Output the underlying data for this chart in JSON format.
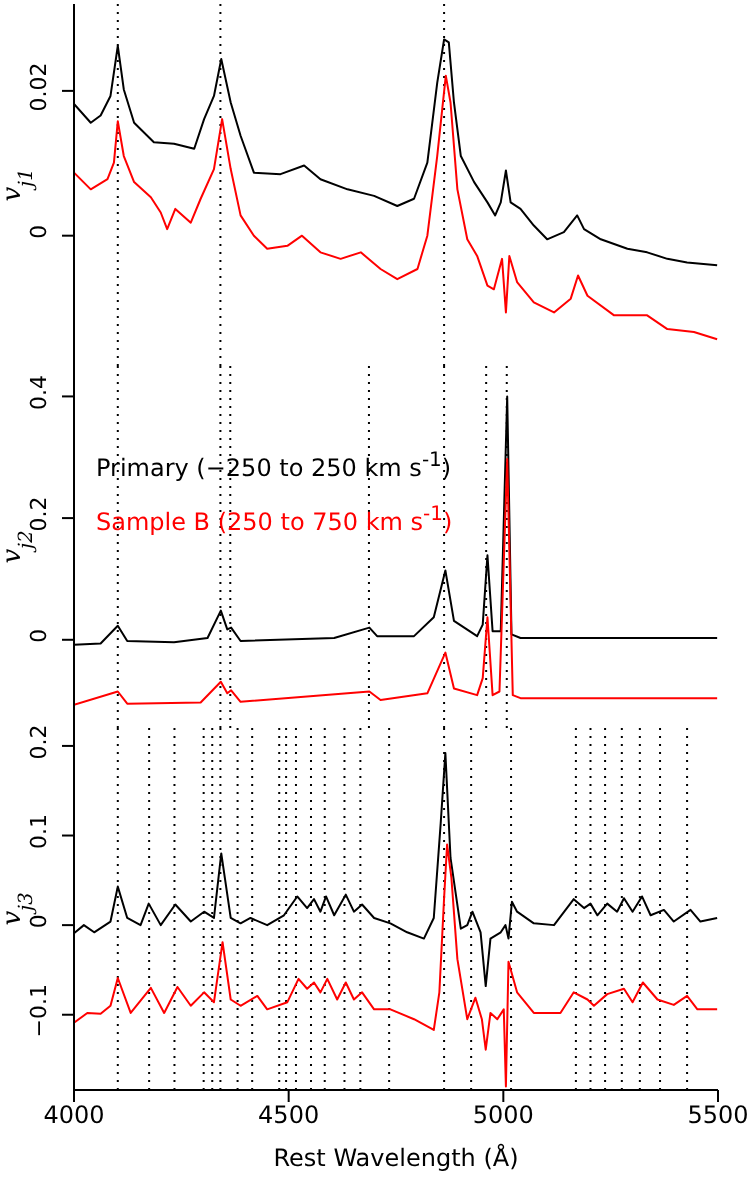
{
  "chart_data": [
    {
      "type": "line",
      "ylabel": "v$_{j1}$",
      "xlim": [
        4000,
        5500
      ],
      "xticks": [
        4000,
        4500,
        5000,
        5500
      ],
      "ylim": [
        -0.018,
        0.032
      ],
      "yticks": [
        0,
        0.02
      ],
      "tick_labels": "y",
      "ref_lines": [
        {
          "axis": "x",
          "value": 4102,
          "line_style": "dotted"
        },
        {
          "axis": "x",
          "value": 4341,
          "line_style": "dotted"
        },
        {
          "axis": "x",
          "value": 4862,
          "line_style": "dotted"
        }
      ],
      "series": [
        {
          "color": "#000000",
          "x": [
            4000,
            4039,
            4062,
            4085,
            4102,
            4116,
            4140,
            4186,
            4233,
            4280,
            4303,
            4326,
            4343,
            4365,
            4388,
            4419,
            4481,
            4536,
            4574,
            4637,
            4699,
            4753,
            4792,
            4823,
            4846,
            4862,
            4873,
            4885,
            4901,
            4932,
            4963,
            4981,
            4994,
            5006,
            5017,
            5040,
            5071,
            5102,
            5141,
            5172,
            5188,
            5227,
            5289,
            5335,
            5382,
            5428,
            5498
          ],
          "values": [
            0.0182,
            0.0156,
            0.0166,
            0.0193,
            0.0262,
            0.0202,
            0.0156,
            0.0129,
            0.0127,
            0.012,
            0.0161,
            0.0193,
            0.0244,
            0.0184,
            0.0138,
            0.0087,
            0.0085,
            0.0097,
            0.0078,
            0.0064,
            0.0055,
            0.0041,
            0.0051,
            0.0101,
            0.0211,
            0.0271,
            0.0267,
            0.0184,
            0.011,
            0.0074,
            0.0046,
            0.0028,
            0.0046,
            0.009,
            0.0046,
            0.0037,
            0.0014,
            -0.0005,
            0.0005,
            0.0028,
            0.0009,
            -0.0005,
            -0.0018,
            -0.0023,
            -0.0032,
            -0.0037,
            -0.0041
          ]
        },
        {
          "color": "#ff0000",
          "x": [
            4000,
            4039,
            4078,
            4093,
            4102,
            4116,
            4140,
            4179,
            4202,
            4217,
            4236,
            4272,
            4295,
            4326,
            4345,
            4365,
            4388,
            4419,
            4450,
            4497,
            4531,
            4574,
            4621,
            4668,
            4714,
            4753,
            4800,
            4823,
            4846,
            4866,
            4877,
            4893,
            4916,
            4939,
            4963,
            4978,
            4997,
            5006,
            5014,
            5032,
            5071,
            5118,
            5157,
            5174,
            5196,
            5258,
            5335,
            5382,
            5444,
            5498
          ],
          "values": [
            0.0087,
            0.0064,
            0.0078,
            0.0101,
            0.0158,
            0.011,
            0.0074,
            0.0053,
            0.0032,
            0.0009,
            0.0037,
            0.0018,
            0.0051,
            0.0092,
            0.0161,
            0.0092,
            0.0028,
            0,
            -0.0018,
            -0.0014,
            0,
            -0.0023,
            -0.0032,
            -0.0023,
            -0.0046,
            -0.006,
            -0.0046,
            0,
            0.011,
            0.0221,
            0.0184,
            0.0064,
            -0.0005,
            -0.0028,
            -0.0069,
            -0.0074,
            -0.0032,
            -0.0106,
            -0.0028,
            -0.0064,
            -0.0092,
            -0.0106,
            -0.0087,
            -0.0055,
            -0.0083,
            -0.011,
            -0.011,
            -0.0129,
            -0.0133,
            -0.0143
          ]
        }
      ]
    },
    {
      "type": "line",
      "ylabel": "v$_{j2}$",
      "xlim": [
        4000,
        5500
      ],
      "xticks": [
        4000,
        4500,
        5000,
        5500
      ],
      "ylim": [
        -0.145,
        0.45
      ],
      "yticks": [
        0,
        0.2,
        0.4
      ],
      "tick_labels": "y",
      "legend": "top left",
      "ref_lines": [
        {
          "axis": "x",
          "value": 4102,
          "line_style": "dotted"
        },
        {
          "axis": "x",
          "value": 4341,
          "line_style": "dotted"
        },
        {
          "axis": "x",
          "value": 4364,
          "line_style": "dotted"
        },
        {
          "axis": "x",
          "value": 4687,
          "line_style": "dotted"
        },
        {
          "axis": "x",
          "value": 4862,
          "line_style": "dotted"
        },
        {
          "axis": "x",
          "value": 4960,
          "line_style": "dotted"
        },
        {
          "axis": "x",
          "value": 5008,
          "line_style": "dotted"
        }
      ],
      "series": [
        {
          "name": "Primary (−250 to 250 km s$^{-1}$)",
          "color": "#000000",
          "x": [
            4000,
            4062,
            4102,
            4124,
            4233,
            4311,
            4342,
            4357,
            4366,
            4388,
            4606,
            4688,
            4706,
            4792,
            4838,
            4865,
            4885,
            4939,
            4952,
            4963,
            4975,
            4994,
            5009,
            5019,
            5040,
            5498
          ],
          "values": [
            -0.008,
            -0.006,
            0.023,
            -0.002,
            -0.004,
            0.003,
            0.048,
            0.017,
            0.02,
            -0.002,
            0.003,
            0.02,
            0.006,
            0.006,
            0.037,
            0.114,
            0.031,
            0.006,
            0.025,
            0.139,
            0.014,
            0.014,
            0.4,
            0.009,
            0.003,
            0.003
          ]
        },
        {
          "name": "Sample B (250 to 750 km s$^{-1}$)",
          "color": "#ff0000",
          "x": [
            4000,
            4102,
            4124,
            4295,
            4342,
            4357,
            4366,
            4388,
            4688,
            4714,
            4823,
            4865,
            4885,
            4939,
            4952,
            4963,
            4975,
            4991,
            5009,
            5022,
            5040,
            5498
          ],
          "values": [
            -0.107,
            -0.085,
            -0.105,
            -0.103,
            -0.069,
            -0.088,
            -0.083,
            -0.102,
            -0.085,
            -0.099,
            -0.088,
            -0.021,
            -0.08,
            -0.091,
            -0.063,
            0.037,
            -0.091,
            -0.085,
            0.297,
            -0.091,
            -0.096,
            -0.096
          ]
        }
      ]
    },
    {
      "type": "line",
      "ylabel": "v$_{j3}$",
      "xlabel": "Rest Wavelength (Å)",
      "xlim": [
        4000,
        5500
      ],
      "xticks": [
        4000,
        4500,
        5000,
        5500
      ],
      "ylim": [
        -0.184,
        0.22
      ],
      "yticks": [
        {
          "value": -0.1,
          "label": "−0.1"
        },
        0,
        0.1,
        0.2
      ],
      "ref_lines": [
        {
          "axis": "x",
          "value": 4102,
          "line_style": "dotted"
        },
        {
          "axis": "x",
          "value": 4175,
          "line_style": "dotted"
        },
        {
          "axis": "x",
          "value": 4234,
          "line_style": "dotted"
        },
        {
          "axis": "x",
          "value": 4302,
          "line_style": "dotted"
        },
        {
          "axis": "x",
          "value": 4322,
          "line_style": "dotted"
        },
        {
          "axis": "x",
          "value": 4341,
          "line_style": "dotted"
        },
        {
          "axis": "x",
          "value": 4381,
          "line_style": "dotted"
        },
        {
          "axis": "x",
          "value": 4415,
          "line_style": "dotted"
        },
        {
          "axis": "x",
          "value": 4478,
          "line_style": "dotted"
        },
        {
          "axis": "x",
          "value": 4494,
          "line_style": "dotted"
        },
        {
          "axis": "x",
          "value": 4517,
          "line_style": "dotted"
        },
        {
          "axis": "x",
          "value": 4552,
          "line_style": "dotted"
        },
        {
          "axis": "x",
          "value": 4584,
          "line_style": "dotted"
        },
        {
          "axis": "x",
          "value": 4630,
          "line_style": "dotted"
        },
        {
          "axis": "x",
          "value": 4667,
          "line_style": "dotted"
        },
        {
          "axis": "x",
          "value": 4734,
          "line_style": "dotted"
        },
        {
          "axis": "x",
          "value": 4862,
          "line_style": "dotted"
        },
        {
          "axis": "x",
          "value": 4925,
          "line_style": "dotted"
        },
        {
          "axis": "x",
          "value": 5018,
          "line_style": "dotted"
        },
        {
          "axis": "x",
          "value": 5169,
          "line_style": "dotted"
        },
        {
          "axis": "x",
          "value": 5203,
          "line_style": "dotted"
        },
        {
          "axis": "x",
          "value": 5237,
          "line_style": "dotted"
        },
        {
          "axis": "x",
          "value": 5276,
          "line_style": "dotted"
        },
        {
          "axis": "x",
          "value": 5318,
          "line_style": "dotted"
        },
        {
          "axis": "x",
          "value": 5365,
          "line_style": "dotted"
        },
        {
          "axis": "x",
          "value": 5428,
          "line_style": "dotted"
        }
      ],
      "series": [
        {
          "color": "#000000",
          "x": [
            4000,
            4023,
            4047,
            4085,
            4102,
            4124,
            4155,
            4174,
            4202,
            4236,
            4272,
            4303,
            4326,
            4343,
            4365,
            4388,
            4411,
            4450,
            4489,
            4520,
            4543,
            4559,
            4574,
            4587,
            4606,
            4633,
            4652,
            4671,
            4699,
            4737,
            4776,
            4815,
            4838,
            4854,
            4865,
            4877,
            4901,
            4916,
            4928,
            4947,
            4959,
            4970,
            4994,
            5005,
            5012,
            5020,
            5032,
            5071,
            5118,
            5164,
            5188,
            5203,
            5219,
            5242,
            5265,
            5281,
            5301,
            5323,
            5343,
            5374,
            5397,
            5436,
            5459,
            5498
          ],
          "values": [
            -0.009,
            0,
            -0.008,
            0.004,
            0.043,
            0.008,
            0,
            0.024,
            0,
            0.023,
            0.004,
            0.015,
            0.008,
            0.08,
            0.008,
            0.002,
            0.008,
            0,
            0.011,
            0.032,
            0.019,
            0.029,
            0.015,
            0.032,
            0.011,
            0.034,
            0.015,
            0.023,
            0.008,
            0.002,
            -0.008,
            -0.015,
            0.008,
            0.113,
            0.192,
            0.075,
            -0.004,
            0,
            0.015,
            -0.008,
            -0.068,
            -0.015,
            -0.008,
            0,
            -0.015,
            0.026,
            0.015,
            0.002,
            0,
            0.029,
            0.019,
            0.024,
            0.011,
            0.024,
            0.015,
            0.03,
            0.015,
            0.032,
            0.011,
            0.017,
            0.004,
            0.017,
            0.004,
            0.008
          ]
        },
        {
          "color": "#ff0000",
          "x": [
            4000,
            4031,
            4062,
            4085,
            4102,
            4132,
            4179,
            4210,
            4241,
            4272,
            4303,
            4326,
            4346,
            4365,
            4388,
            4427,
            4450,
            4497,
            4523,
            4543,
            4559,
            4574,
            4590,
            4613,
            4633,
            4652,
            4671,
            4699,
            4737,
            4792,
            4838,
            4851,
            4862,
            4869,
            4879,
            4893,
            4916,
            4935,
            4950,
            4959,
            4970,
            4986,
            5001,
            5006,
            5012,
            5032,
            5071,
            5133,
            5164,
            5196,
            5211,
            5242,
            5281,
            5301,
            5325,
            5359,
            5397,
            5428,
            5452,
            5498
          ],
          "values": [
            -0.109,
            -0.098,
            -0.099,
            -0.09,
            -0.059,
            -0.098,
            -0.07,
            -0.098,
            -0.069,
            -0.09,
            -0.075,
            -0.086,
            -0.019,
            -0.083,
            -0.09,
            -0.079,
            -0.094,
            -0.086,
            -0.06,
            -0.071,
            -0.064,
            -0.075,
            -0.06,
            -0.083,
            -0.064,
            -0.083,
            -0.075,
            -0.094,
            -0.094,
            -0.105,
            -0.117,
            -0.075,
            0.03,
            0.09,
            0.053,
            -0.038,
            -0.105,
            -0.081,
            -0.105,
            -0.139,
            -0.098,
            -0.105,
            -0.094,
            -0.18,
            -0.041,
            -0.075,
            -0.098,
            -0.098,
            -0.075,
            -0.083,
            -0.09,
            -0.077,
            -0.071,
            -0.086,
            -0.064,
            -0.083,
            -0.089,
            -0.079,
            -0.094,
            -0.094
          ]
        }
      ]
    }
  ]
}
